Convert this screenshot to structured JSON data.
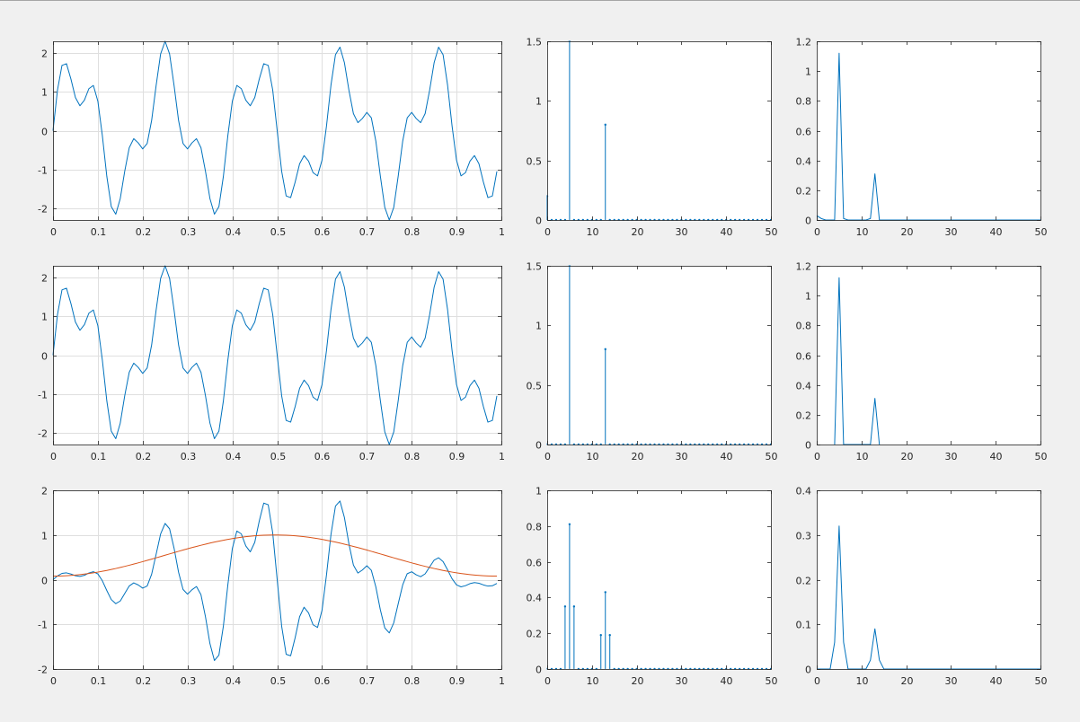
{
  "figure": {
    "background": "#f0f0f0",
    "axes_background": "#ffffff",
    "axis_color": "#262626",
    "grid_color": "#dfdfdf",
    "series_colors": {
      "blue": "#0072bd",
      "orange": "#d95319"
    }
  },
  "chart_data": [
    {
      "id": "r1c1",
      "type": "line",
      "grid": true,
      "xlim": [
        0,
        1
      ],
      "ylim": [
        -2.3,
        2.3
      ],
      "xticks": [
        0,
        0.1,
        0.2,
        0.3,
        0.4,
        0.5,
        0.6,
        0.7,
        0.8,
        0.9,
        1
      ],
      "xticklabels": [
        "0",
        "0.1",
        "0.2",
        "0.3",
        "0.4",
        "0.5",
        "0.6",
        "0.7",
        "0.8",
        "0.9",
        "1"
      ],
      "yticks": [
        -2,
        -1,
        0,
        1,
        2
      ],
      "yticklabels": [
        "-2",
        "-1",
        "0",
        "1",
        "2"
      ],
      "series": [
        {
          "color": "#0072bd",
          "function": {
            "type": "sine_sum",
            "dx": 0.01,
            "n": 100,
            "phase_cycles": 0,
            "components": [
              {
                "amp": 1.5,
                "freq": 5
              },
              {
                "amp": 0.8,
                "freq": 13
              }
            ]
          }
        }
      ]
    },
    {
      "id": "r1c2",
      "type": "stem",
      "xlim": [
        0,
        50
      ],
      "ylim": [
        0,
        1.5
      ],
      "xticks": [
        0,
        10,
        20,
        30,
        40,
        50
      ],
      "xticklabels": [
        "0",
        "10",
        "20",
        "30",
        "40",
        "50"
      ],
      "yticks": [
        0,
        0.5,
        1,
        1.5
      ],
      "yticklabels": [
        "0",
        "0.5",
        "1",
        "1.5"
      ],
      "x_start": 0,
      "x_step": 1,
      "values": [
        0.2,
        0,
        0,
        0,
        0,
        1.5,
        0,
        0,
        0,
        0,
        0,
        0,
        0,
        0.8,
        0,
        0,
        0,
        0,
        0,
        0,
        0,
        0,
        0,
        0,
        0,
        0,
        0,
        0,
        0,
        0,
        0,
        0,
        0,
        0,
        0,
        0,
        0,
        0,
        0,
        0,
        0,
        0,
        0,
        0,
        0,
        0,
        0,
        0,
        0,
        0,
        0
      ],
      "color": "#0072bd"
    },
    {
      "id": "r1c3",
      "type": "line",
      "xlim": [
        0,
        50
      ],
      "ylim": [
        0,
        1.2
      ],
      "xticks": [
        0,
        10,
        20,
        30,
        40,
        50
      ],
      "xticklabels": [
        "0",
        "10",
        "20",
        "30",
        "40",
        "50"
      ],
      "yticks": [
        0,
        0.2,
        0.4,
        0.6,
        0.8,
        1,
        1.2
      ],
      "yticklabels": [
        "0",
        "0.2",
        "0.4",
        "0.6",
        "0.8",
        "1",
        "1.2"
      ],
      "series": [
        {
          "color": "#0072bd",
          "x": [
            0,
            1,
            2,
            3,
            4,
            5,
            6,
            7,
            8,
            9,
            10,
            11,
            12,
            13,
            14,
            15,
            16,
            17,
            18,
            19,
            20,
            21,
            22,
            23,
            24,
            25,
            26,
            27,
            28,
            29,
            30,
            31,
            32,
            33,
            34,
            35,
            36,
            37,
            38,
            39,
            40,
            41,
            42,
            43,
            44,
            45,
            46,
            47,
            48,
            49,
            50
          ],
          "y": [
            0.03,
            0.01,
            0,
            0,
            0,
            1.12,
            0.01,
            0,
            0,
            0,
            0,
            0,
            0.01,
            0.31,
            0,
            0,
            0,
            0,
            0,
            0,
            0,
            0,
            0,
            0,
            0,
            0,
            0,
            0,
            0,
            0,
            0,
            0,
            0,
            0,
            0,
            0,
            0,
            0,
            0,
            0,
            0,
            0,
            0,
            0,
            0,
            0,
            0,
            0,
            0,
            0,
            0
          ]
        }
      ]
    },
    {
      "id": "r2c1",
      "type": "line",
      "grid": true,
      "xlim": [
        0,
        1
      ],
      "ylim": [
        -2.3,
        2.3
      ],
      "xticks": [
        0,
        0.1,
        0.2,
        0.3,
        0.4,
        0.5,
        0.6,
        0.7,
        0.8,
        0.9,
        1
      ],
      "xticklabels": [
        "0",
        "0.1",
        "0.2",
        "0.3",
        "0.4",
        "0.5",
        "0.6",
        "0.7",
        "0.8",
        "0.9",
        "1"
      ],
      "yticks": [
        -2,
        -1,
        0,
        1,
        2
      ],
      "yticklabels": [
        "-2",
        "-1",
        "0",
        "1",
        "2"
      ],
      "series": [
        {
          "color": "#0072bd",
          "function": {
            "type": "sine_sum",
            "dx": 0.01,
            "n": 100,
            "phase_cycles": 0,
            "components": [
              {
                "amp": 1.5,
                "freq": 5
              },
              {
                "amp": 0.8,
                "freq": 13
              }
            ]
          }
        }
      ]
    },
    {
      "id": "r2c2",
      "type": "stem",
      "xlim": [
        0,
        50
      ],
      "ylim": [
        0,
        1.5
      ],
      "xticks": [
        0,
        10,
        20,
        30,
        40,
        50
      ],
      "xticklabels": [
        "0",
        "10",
        "20",
        "30",
        "40",
        "50"
      ],
      "yticks": [
        0,
        0.5,
        1,
        1.5
      ],
      "yticklabels": [
        "0",
        "0.5",
        "1",
        "1.5"
      ],
      "x_start": 0,
      "x_step": 1,
      "values": [
        0,
        0,
        0,
        0,
        0,
        1.5,
        0,
        0,
        0,
        0,
        0,
        0,
        0,
        0.8,
        0,
        0,
        0,
        0,
        0,
        0,
        0,
        0,
        0,
        0,
        0,
        0,
        0,
        0,
        0,
        0,
        0,
        0,
        0,
        0,
        0,
        0,
        0,
        0,
        0,
        0,
        0,
        0,
        0,
        0,
        0,
        0,
        0,
        0,
        0,
        0,
        0
      ],
      "color": "#0072bd"
    },
    {
      "id": "r2c3",
      "type": "line",
      "xlim": [
        0,
        50
      ],
      "ylim": [
        0,
        1.2
      ],
      "xticks": [
        0,
        10,
        20,
        30,
        40,
        50
      ],
      "xticklabels": [
        "0",
        "10",
        "20",
        "30",
        "40",
        "50"
      ],
      "yticks": [
        0,
        0.2,
        0.4,
        0.6,
        0.8,
        1,
        1.2
      ],
      "yticklabels": [
        "0",
        "0.2",
        "0.4",
        "0.6",
        "0.8",
        "1",
        "1.2"
      ],
      "series": [
        {
          "color": "#0072bd",
          "x": [
            4,
            5,
            6,
            12,
            13,
            14
          ],
          "y": [
            0,
            1.12,
            0,
            0,
            0.31,
            0
          ]
        }
      ]
    },
    {
      "id": "r3c1",
      "type": "line",
      "grid": true,
      "xlim": [
        0,
        1
      ],
      "ylim": [
        -2,
        2
      ],
      "xticks": [
        0,
        0.1,
        0.2,
        0.3,
        0.4,
        0.5,
        0.6,
        0.7,
        0.8,
        0.9,
        1
      ],
      "xticklabels": [
        "0",
        "0.1",
        "0.2",
        "0.3",
        "0.4",
        "0.5",
        "0.6",
        "0.7",
        "0.8",
        "0.9",
        "1"
      ],
      "yticks": [
        -2,
        -1,
        0,
        1,
        2
      ],
      "yticklabels": [
        "-2",
        "-1",
        "0",
        "1",
        "2"
      ],
      "series": [
        {
          "color": "#0072bd",
          "function": {
            "type": "windowed_sine_sum",
            "window": "hamming",
            "dx": 0.01,
            "n": 100,
            "phase_cycles": 0,
            "components": [
              {
                "amp": 1.5,
                "freq": 5
              },
              {
                "amp": 0.8,
                "freq": 13
              }
            ]
          }
        },
        {
          "color": "#d95319",
          "function": {
            "type": "hamming_window",
            "dx": 0.01,
            "n": 100
          }
        }
      ]
    },
    {
      "id": "r3c2",
      "type": "stem",
      "xlim": [
        0,
        50
      ],
      "ylim": [
        0,
        1
      ],
      "xticks": [
        0,
        10,
        20,
        30,
        40,
        50
      ],
      "xticklabels": [
        "0",
        "10",
        "20",
        "30",
        "40",
        "50"
      ],
      "yticks": [
        0,
        0.2,
        0.4,
        0.6,
        0.8,
        1
      ],
      "yticklabels": [
        "0",
        "0.2",
        "0.4",
        "0.6",
        "0.8",
        "1"
      ],
      "x_start": 0,
      "x_step": 1,
      "values": [
        0,
        0,
        0,
        0,
        0.35,
        0.81,
        0.35,
        0,
        0,
        0,
        0,
        0,
        0.19,
        0.43,
        0.19,
        0,
        0,
        0,
        0,
        0,
        0,
        0,
        0,
        0,
        0,
        0,
        0,
        0,
        0,
        0,
        0,
        0,
        0,
        0,
        0,
        0,
        0,
        0,
        0,
        0,
        0,
        0,
        0,
        0,
        0,
        0,
        0,
        0,
        0,
        0,
        0
      ],
      "color": "#0072bd"
    },
    {
      "id": "r3c3",
      "type": "line",
      "xlim": [
        0,
        50
      ],
      "ylim": [
        0,
        0.4
      ],
      "xticks": [
        0,
        10,
        20,
        30,
        40,
        50
      ],
      "xticklabels": [
        "0",
        "10",
        "20",
        "30",
        "40",
        "50"
      ],
      "yticks": [
        0,
        0.1,
        0.2,
        0.3,
        0.4
      ],
      "yticklabels": [
        "0",
        "0.1",
        "0.2",
        "0.3",
        "0.4"
      ],
      "series": [
        {
          "color": "#0072bd",
          "x": [
            0,
            1,
            2,
            3,
            4,
            5,
            6,
            7,
            8,
            9,
            10,
            11,
            12,
            13,
            14,
            15,
            16,
            17,
            18,
            19,
            20,
            21,
            22,
            23,
            24,
            25,
            26,
            27,
            28,
            29,
            30,
            31,
            32,
            33,
            34,
            35,
            36,
            37,
            38,
            39,
            40,
            41,
            42,
            43,
            44,
            45,
            46,
            47,
            48,
            49,
            50
          ],
          "y": [
            0,
            0,
            0,
            0,
            0.06,
            0.32,
            0.06,
            0,
            0,
            0,
            0,
            0,
            0.02,
            0.09,
            0.02,
            0,
            0,
            0,
            0,
            0,
            0,
            0,
            0,
            0,
            0,
            0,
            0,
            0,
            0,
            0,
            0,
            0,
            0,
            0,
            0,
            0,
            0,
            0,
            0,
            0,
            0,
            0,
            0,
            0,
            0,
            0,
            0,
            0,
            0,
            0,
            0
          ]
        }
      ]
    }
  ]
}
